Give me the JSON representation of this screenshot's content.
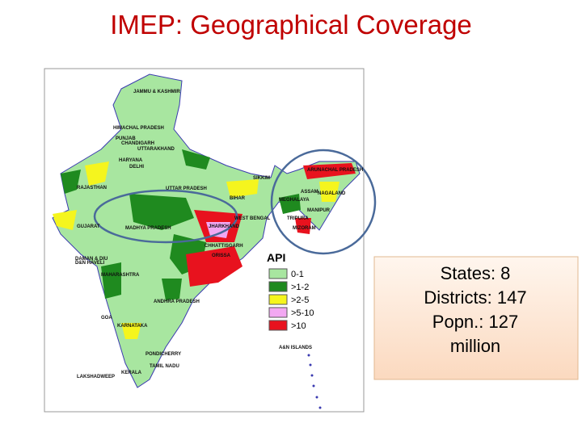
{
  "title": "IMEP: Geographical Coverage",
  "map": {
    "labels": [
      "JAMMU & KASHMIR",
      "HIMACHAL PRADESH",
      "PUNJAB",
      "CHANDIGARH",
      "UTTARAKHAND",
      "HARYANA",
      "DELHI",
      "RAJASTHAN",
      "UTTAR PRADESH",
      "SIKKIM",
      "ARUNACHAL PRADESH",
      "ASSAM",
      "NAGALAND",
      "MEGHALAYA",
      "MANIPUR",
      "BIHAR",
      "WEST BENGAL",
      "TRIPURA",
      "MIZORAM",
      "JHARKHAND",
      "GUJARAT",
      "MADHYA PRADESH",
      "CHHATTISGARH",
      "ORISSA",
      "DAMAN & DIU",
      "D&N HAVELI",
      "MAHARASHTRA",
      "ANDHRA PRADESH",
      "GOA",
      "KARNATAKA",
      "PONDICHERRY",
      "TAMIL NADU",
      "KERALA",
      "LAKSHADWEEP",
      "A&N ISLANDS"
    ]
  },
  "legend": {
    "title": "API",
    "items": [
      {
        "label": "0-1",
        "color": "#a8e6a0"
      },
      {
        "label": ">1-2",
        "color": "#1f8a1f"
      },
      {
        "label": ">2-5",
        "color": "#f5f51e"
      },
      {
        "label": ">5-10",
        "color": "#f2a8f2"
      },
      {
        "label": ">10",
        "color": "#e8121e"
      }
    ]
  },
  "stats": [
    "States: 8",
    "Districts: 147",
    "Popn.: 127",
    "million"
  ]
}
